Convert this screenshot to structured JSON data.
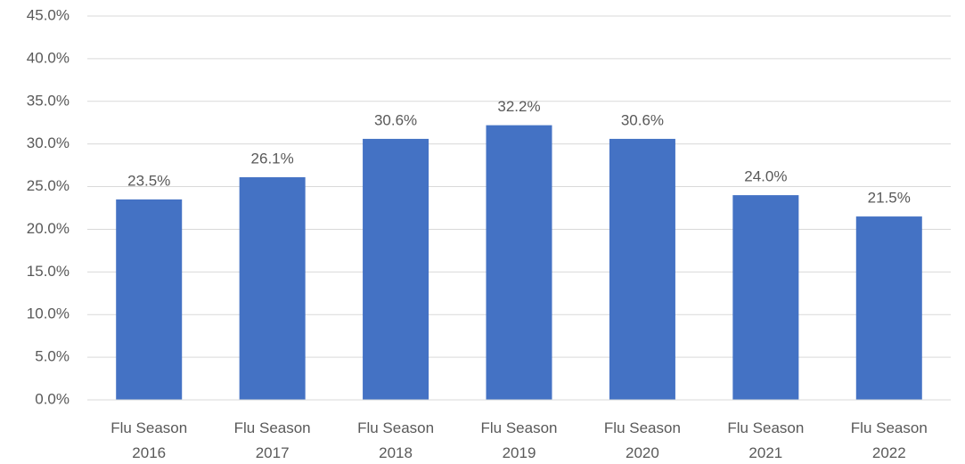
{
  "chart_data": {
    "type": "bar",
    "categories": [
      "Flu Season 2016",
      "Flu Season 2017",
      "Flu Season 2018",
      "Flu Season 2019",
      "Flu Season 2020",
      "Flu Season 2021",
      "Flu Season 2022"
    ],
    "values": [
      23.5,
      26.1,
      30.6,
      32.2,
      30.6,
      24.0,
      21.5
    ],
    "value_labels": [
      "23.5%",
      "26.1%",
      "30.6%",
      "32.2%",
      "30.6%",
      "24.0%",
      "21.5%"
    ],
    "color": "#4472c4",
    "ylim": [
      0,
      45
    ],
    "yticks": [
      {
        "value": 0,
        "label": "0.0%"
      },
      {
        "value": 5,
        "label": "5.0%"
      },
      {
        "value": 10,
        "label": "10.0%"
      },
      {
        "value": 15,
        "label": "15.0%"
      },
      {
        "value": 20,
        "label": "20.0%"
      },
      {
        "value": 25,
        "label": "25.0%"
      },
      {
        "value": 30,
        "label": "30.0%"
      },
      {
        "value": 35,
        "label": "35.0%"
      },
      {
        "value": 40,
        "label": "40.0%"
      },
      {
        "value": 45,
        "label": "45.0%"
      }
    ],
    "grid": true
  }
}
